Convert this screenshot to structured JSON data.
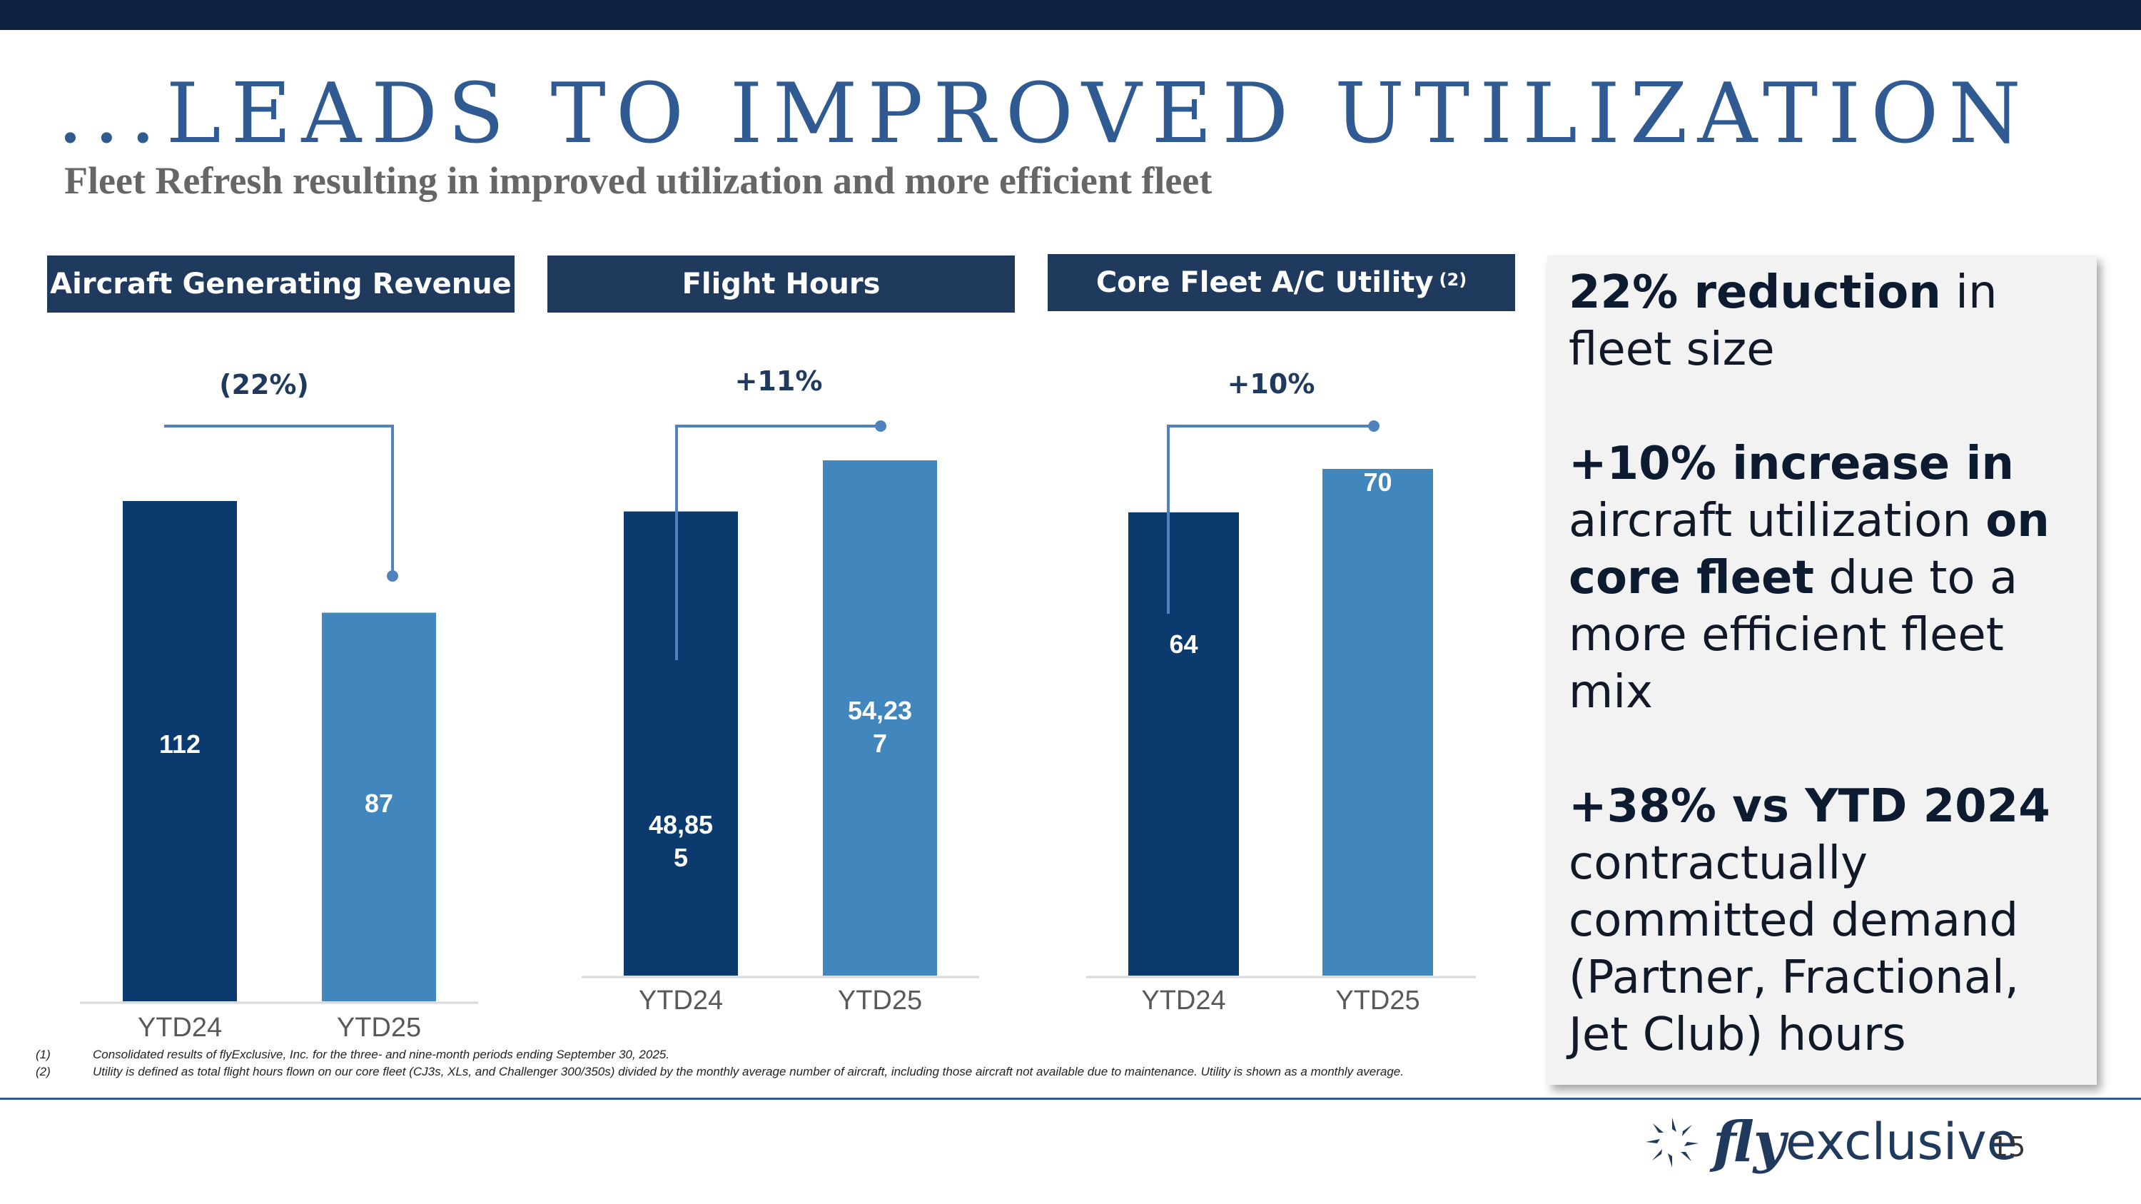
{
  "title": "...LEADS TO IMPROVED UTILIZATION",
  "subtitle": "Fleet Refresh resulting in improved utilization and more efficient fleet",
  "panels": [
    {
      "header": "Aircraft Generating Revenue",
      "footnote_ref": ""
    },
    {
      "header": "Flight Hours",
      "footnote_ref": ""
    },
    {
      "header": "Core Fleet A/C Utility",
      "footnote_ref": "(2)"
    }
  ],
  "chart_data": [
    {
      "type": "bar",
      "title": "Aircraft Generating Revenue",
      "categories": [
        "YTD24",
        "YTD25"
      ],
      "values": [
        112,
        87
      ],
      "value_labels": [
        "112",
        "87"
      ],
      "change_label": "(22%)",
      "ylim": [
        0,
        112
      ]
    },
    {
      "type": "bar",
      "title": "Flight Hours",
      "categories": [
        "YTD24",
        "YTD25"
      ],
      "values": [
        48855,
        54237
      ],
      "value_labels": [
        "48,85\n5",
        "54,23\n7"
      ],
      "change_label": "+11%",
      "ylim": [
        0,
        54237
      ]
    },
    {
      "type": "bar",
      "title": "Core Fleet A/C Utility",
      "categories": [
        "YTD24",
        "YTD25"
      ],
      "values": [
        64,
        70
      ],
      "value_labels": [
        "64",
        "70"
      ],
      "change_label": "+10%",
      "ylim": [
        0,
        70
      ]
    }
  ],
  "colors": {
    "dark_bar": "#0b3a6e",
    "light_bar": "#4187bd",
    "header_bg": "#1f3a5c",
    "accent": "#2f5a92",
    "bracket": "#5083bd"
  },
  "callout": {
    "p1_bold": "22% reduction",
    "p1_rest": " in fleet size",
    "p2_bold1": "+10% increase in",
    "p2_mid": " aircraft utilization ",
    "p2_bold2": "on core fleet",
    "p2_rest": " due to a more efficient fleet mix",
    "p3_bold": "+38% vs YTD 2024",
    "p3_rest": " contractually committed demand (Partner, Fractional, Jet Club) hours"
  },
  "footnotes": [
    {
      "num": "(1)",
      "text": "Consolidated results of flyExclusive, Inc. for the three- and nine-month periods ending September 30, 2025."
    },
    {
      "num": "(2)",
      "text": "Utility is defined as total flight hours flown on our core fleet (CJ3s, XLs, and Challenger 300/350s) divided by the monthly average number of aircraft, including those aircraft not available due to maintenance.  Utility is shown as a monthly average."
    }
  ],
  "logo": {
    "fly": "fly",
    "rest": "exclusive",
    "icon": "swirl-logo-icon"
  },
  "page_number": "15"
}
